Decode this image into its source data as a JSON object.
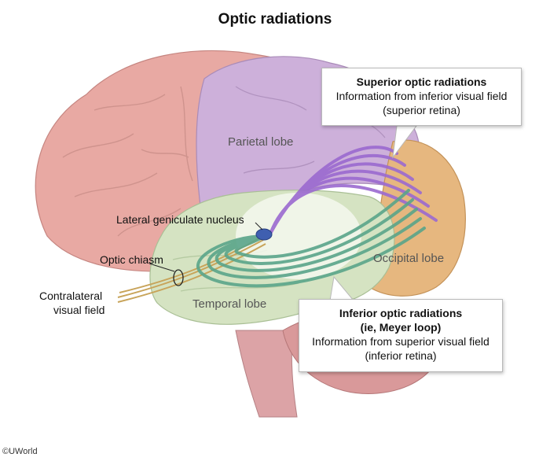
{
  "title": "Optic radiations",
  "lobes": {
    "parietal": "Parietal lobe",
    "occipital": "Occipital lobe",
    "temporal": "Temporal lobe"
  },
  "annotations": {
    "lgn": "Lateral geniculate nucleus",
    "chiasm": "Optic chiasm",
    "field_line1": "Contralateral",
    "field_line2": "visual field"
  },
  "superior_callout": {
    "heading": "Superior optic radiations",
    "line1": "Information from inferior visual field",
    "line2": "(superior retina)"
  },
  "inferior_callout": {
    "heading1": "Inferior optic radiations",
    "heading2": "(ie, Meyer loop)",
    "line1": "Information from superior visual field",
    "line2": "(inferior retina)"
  },
  "credit": "©UWorld",
  "colors": {
    "frontal": "#e8a9a3",
    "parietal": "#cdb0da",
    "occipital": "#e6b77f",
    "temporal": "#d5e3c2",
    "cerebellum": "#d9999a",
    "superior_fibers": "#9b6ad0",
    "inferior_fibers": "#5aa58a",
    "lgn": "#3f5fb0",
    "optic_nerve": "#c8a45a"
  }
}
